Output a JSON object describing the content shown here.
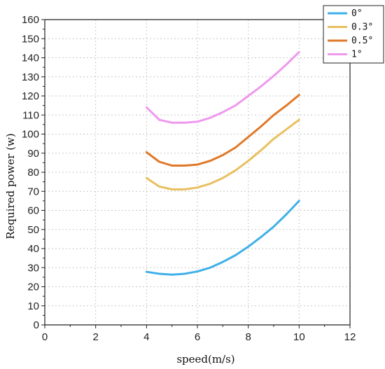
{
  "chart_data": {
    "type": "line",
    "xlabel": "speed(m/s)",
    "ylabel": "Required power (w)",
    "xlim": [
      0,
      12
    ],
    "ylim": [
      0,
      160
    ],
    "x_ticks": [
      "0",
      "2",
      "4",
      "6",
      "8",
      "10",
      "12"
    ],
    "y_ticks": [
      "0",
      "10",
      "20",
      "30",
      "40",
      "50",
      "60",
      "70",
      "80",
      "90",
      "100",
      "110",
      "120",
      "130",
      "140",
      "150",
      "160"
    ],
    "grid": true,
    "legend_position": "top-right",
    "x": [
      4.0,
      4.5,
      5.0,
      5.5,
      6.0,
      6.5,
      7.0,
      7.5,
      8.0,
      8.5,
      9.0,
      9.5,
      10.0
    ],
    "series": [
      {
        "name": "0°",
        "color": "#3fb0e8",
        "values": [
          27.8,
          26.8,
          26.3,
          26.8,
          28.0,
          30.0,
          33.0,
          36.5,
          41.0,
          46.0,
          51.5,
          58.0,
          65.0
        ]
      },
      {
        "name": "0.3°",
        "color": "#e8c060",
        "values": [
          77.0,
          72.5,
          71.0,
          71.0,
          72.0,
          74.0,
          77.0,
          81.0,
          86.0,
          91.5,
          97.5,
          102.5,
          107.5
        ]
      },
      {
        "name": "0.5°",
        "color": "#e07828",
        "values": [
          90.5,
          85.5,
          83.5,
          83.5,
          84.0,
          86.0,
          89.0,
          93.0,
          98.5,
          104.0,
          110.0,
          115.0,
          120.5
        ]
      },
      {
        "name": "1°",
        "color": "#ee99ee",
        "values": [
          114.0,
          107.5,
          106.0,
          106.0,
          106.5,
          108.5,
          111.5,
          115.0,
          120.0,
          125.0,
          130.5,
          136.5,
          143.0
        ]
      }
    ]
  }
}
